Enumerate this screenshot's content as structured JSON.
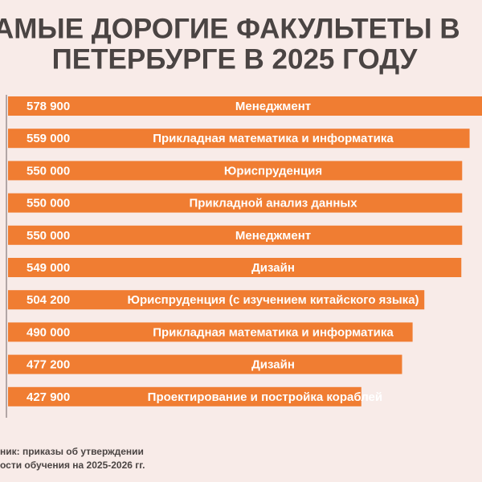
{
  "chart_data": {
    "type": "hbar",
    "title_lines": [
      "АМЫЕ ДОРОГИЕ ФАКУЛЬТЕТЫ В",
      "ПЕТЕРБУРГЕ В 2025 ГОДУ"
    ],
    "categories": [
      "Менеджмент",
      "Прикладная математика и  информатика",
      "Юриспруденция",
      "Прикладной анализ данных",
      "Менеджмент",
      "Дизайн",
      "Юриспруденция (с изучением китайского языка)",
      "Прикладная математика и  информатика",
      "Дизайн",
      "Проектирование и постройка кораблей"
    ],
    "values": [
      578900,
      559000,
      550000,
      550000,
      550000,
      549000,
      504200,
      490000,
      477200,
      427900
    ],
    "value_labels": [
      "578 900",
      "559 000",
      "550 000",
      "550 000",
      "550 000",
      "549 000",
      "504 200",
      "490 000",
      "477 200",
      "427 900"
    ],
    "color": "#f07d32",
    "source_lines": [
      "ник: приказы об утверждении",
      "ости обучения на 2025-2026 гг."
    ]
  }
}
